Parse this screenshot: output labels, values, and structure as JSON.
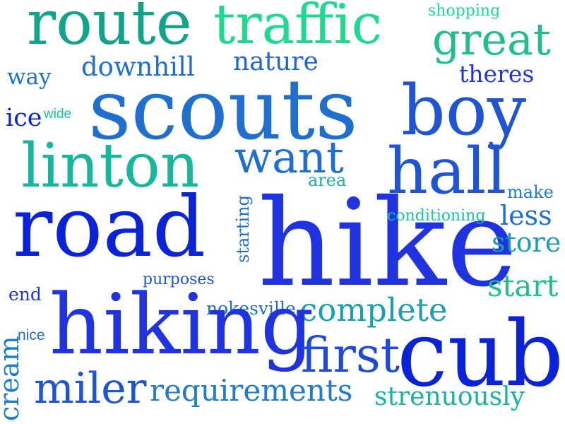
{
  "palette": {
    "blue": "#1f33e0",
    "royal": "#0a23d8",
    "azure": "#1f6fd0",
    "teal": "#12a49a",
    "mint": "#1fd98e",
    "sea": "#19b3a3"
  },
  "words": {
    "hike": {
      "text": "hike",
      "color": "#1f33e0"
    },
    "scouts": {
      "text": "scouts",
      "color": "#1f6fd0"
    },
    "boy": {
      "text": "boy",
      "color": "#1f55d4"
    },
    "road": {
      "text": "road",
      "color": "#0a23d8"
    },
    "hiking": {
      "text": "hiking",
      "color": "#1f33e0"
    },
    "route": {
      "text": "route",
      "color": "#12a48b"
    },
    "traffic": {
      "text": "traffic",
      "color": "#1fd98e"
    },
    "linton": {
      "text": "linton",
      "color": "#16b79d"
    },
    "cub": {
      "text": "cub",
      "color": "#0a23d8"
    },
    "hall": {
      "text": "hall",
      "color": "#1f55d4"
    },
    "great": {
      "text": "great",
      "color": "#1fbf8a"
    },
    "want": {
      "text": "want",
      "color": "#1f6fd0"
    },
    "first": {
      "text": "first",
      "color": "#1f4bd4"
    },
    "miler": {
      "text": "miler",
      "color": "#1f55d4"
    },
    "complete": {
      "text": "complete",
      "color": "#1b9fb0"
    },
    "requirements": {
      "text": "requirements",
      "color": "#1f7ccf"
    },
    "strenuously": {
      "text": "strenuously",
      "color": "#19b3a3"
    },
    "downhill": {
      "text": "downhill",
      "color": "#1f6fd0"
    },
    "nature": {
      "text": "nature",
      "color": "#1f66d4"
    },
    "theres": {
      "text": "theres",
      "color": "#1f33e0"
    },
    "way": {
      "text": "way",
      "color": "#1f6fd0"
    },
    "shopping": {
      "text": "shopping",
      "color": "#1fd98e"
    },
    "ice": {
      "text": "ice",
      "color": "#0a23d8"
    },
    "wide": {
      "text": "wide",
      "color": "#16c4a0"
    },
    "area": {
      "text": "area",
      "color": "#16b79d"
    },
    "make": {
      "text": "make",
      "color": "#1f7ccf"
    },
    "conditioning": {
      "text": "conditioning",
      "color": "#16c4a0"
    },
    "less": {
      "text": "less",
      "color": "#1f6fd0"
    },
    "store": {
      "text": "store",
      "color": "#1b9fb0"
    },
    "start": {
      "text": "start",
      "color": "#1fbf8a"
    },
    "starting": {
      "text": "starting",
      "color": "#1f6fd0"
    },
    "purposes": {
      "text": "purposes",
      "color": "#1f55d4"
    },
    "nokesville": {
      "text": "nokesville",
      "color": "#1f6fd0"
    },
    "end": {
      "text": "end",
      "color": "#1f33e0"
    },
    "nice": {
      "text": "nice",
      "color": "#1f6fd0"
    },
    "cream": {
      "text": "cream",
      "color": "#1f7ccf"
    }
  }
}
